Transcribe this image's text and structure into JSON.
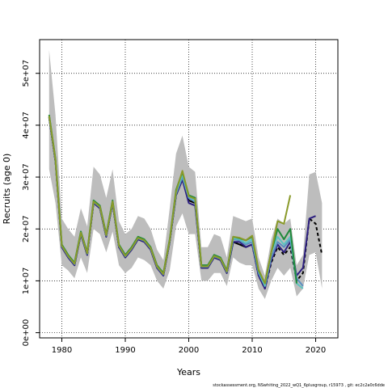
{
  "chart_data": {
    "type": "line",
    "xlabel": "Years",
    "ylabel": "Recruits (age 0)",
    "footer": "stockassessment.org, NSwhiting_2022_wQ1_6plusgroup, r15973 , git: ec2c2a0c6dde",
    "xlim": [
      1976.5,
      2023.5
    ],
    "ylim": [
      -1000000,
      56500000
    ],
    "x_ticks": [
      1980,
      1990,
      2000,
      2010,
      2020
    ],
    "x_tick_labels": [
      "1980",
      "1990",
      "2000",
      "2010",
      "2020"
    ],
    "y_ticks": [
      0,
      10000000,
      20000000,
      30000000,
      40000000,
      50000000
    ],
    "y_tick_labels": [
      "0e+00",
      "1e+07",
      "2e+07",
      "3e+07",
      "4e+07",
      "5e+07"
    ],
    "grid": true,
    "band": {
      "years": [
        1978,
        1979,
        1980,
        1981,
        1982,
        1983,
        1984,
        1985,
        1986,
        1987,
        1988,
        1989,
        1990,
        1991,
        1992,
        1993,
        1994,
        1995,
        1996,
        1997,
        1998,
        1999,
        2000,
        2001,
        2002,
        2003,
        2004,
        2005,
        2006,
        2007,
        2008,
        2009,
        2010,
        2011,
        2012,
        2013,
        2014,
        2015,
        2016,
        2017,
        2018,
        2019,
        2020,
        2021
      ],
      "upper": [
        54500000,
        42000000,
        22000000,
        20000000,
        18500000,
        24000000,
        20500000,
        32000000,
        30500000,
        26000000,
        31500000,
        21500000,
        19000000,
        20000000,
        22500000,
        22000000,
        20000000,
        16000000,
        14000000,
        24000000,
        34500000,
        38000000,
        32000000,
        31000000,
        16500000,
        16500000,
        19000000,
        18500000,
        14500000,
        22500000,
        22000000,
        21500000,
        22000000,
        14500000,
        11000000,
        18000000,
        22000000,
        21000000,
        22000000,
        13000000,
        15000000,
        30500000,
        31000000,
        25000000
      ],
      "lower": [
        31500000,
        25000000,
        13000000,
        12000000,
        10500000,
        14500000,
        11500000,
        20000000,
        19000000,
        15500000,
        19500000,
        13000000,
        11500000,
        12500000,
        14500000,
        14000000,
        13000000,
        10000000,
        8500000,
        12000000,
        20500000,
        23000000,
        19000000,
        19000000,
        10000000,
        10000000,
        11500000,
        11500000,
        9000000,
        14500000,
        13500000,
        13000000,
        13000000,
        8500000,
        6500000,
        10000000,
        12500000,
        11000000,
        12500000,
        7000000,
        8500000,
        15000000,
        15500000,
        8500000
      ]
    },
    "series": [
      {
        "color": "#000000",
        "dash": "solid",
        "x": [
          1978,
          1979,
          1980,
          1981,
          1982,
          1983,
          1984,
          1985,
          1986,
          1987,
          1988,
          1989,
          1990,
          1991,
          1992,
          1993,
          1994,
          1995,
          1996,
          1997,
          1998,
          1999,
          2000,
          2001,
          2002,
          2003,
          2004,
          2005,
          2006,
          2007,
          2008,
          2009,
          2010
        ],
        "y": [
          41500000,
          33000000,
          16500000,
          14500000,
          13000000,
          19000000,
          15000000,
          25000000,
          24000000,
          18500000,
          25000000,
          16500000,
          14500000,
          16000000,
          18000000,
          17500000,
          16000000,
          12500000,
          11000000,
          17500000,
          26500000,
          29500000,
          25500000,
          25000000,
          12500000,
          12500000,
          14500000,
          14000000,
          11500000,
          17500000,
          17000000,
          16500000,
          17000000
        ]
      },
      {
        "color": "#000000",
        "dash": "dashed",
        "x": [
          2010,
          2011,
          2012,
          2013,
          2014,
          2015,
          2016,
          2017,
          2018,
          2019,
          2020,
          2021
        ],
        "y": [
          17000000,
          11000000,
          8500000,
          13500000,
          16500000,
          15000000,
          16500000,
          10000000,
          11500000,
          22000000,
          21000000,
          15000000
        ]
      },
      {
        "color": "#2d1f80",
        "dash": "solid",
        "x": [
          1978,
          1979,
          1980,
          1981,
          1982,
          1983,
          1984,
          1985,
          1986,
          1987,
          1988,
          1989,
          1990,
          1991,
          1992,
          1993,
          1994,
          1995,
          1996,
          1997,
          1998,
          1999,
          2000,
          2001,
          2002,
          2003,
          2004,
          2005,
          2006,
          2007,
          2008,
          2009,
          2010,
          2011,
          2012,
          2013,
          2014,
          2015,
          2016,
          2017,
          2018,
          2019,
          2020
        ],
        "y": [
          41500000,
          33000000,
          16500000,
          14500000,
          13000000,
          19000000,
          15000000,
          25000000,
          24000000,
          18500000,
          25000000,
          16500000,
          14500000,
          16000000,
          18000000,
          17500000,
          16000000,
          12500000,
          11000000,
          17500000,
          26500000,
          29500000,
          25000000,
          24500000,
          12500000,
          12500000,
          14500000,
          14000000,
          11500000,
          17500000,
          17500000,
          16500000,
          17000000,
          11000000,
          8500000,
          14000000,
          17000000,
          15500000,
          17500000,
          11000000,
          12500000,
          22000000,
          22500000
        ]
      },
      {
        "color": "#5a8fc0",
        "dash": "solid",
        "x": [
          1978,
          1979,
          1980,
          1981,
          1982,
          1983,
          1984,
          1985,
          1986,
          1987,
          1988,
          1989,
          1990,
          1991,
          1992,
          1993,
          1994,
          1995,
          1996,
          1997,
          1998,
          1999,
          2000,
          2001,
          2002,
          2003,
          2004,
          2005,
          2006,
          2007,
          2008,
          2009,
          2010,
          2011,
          2012,
          2013,
          2014,
          2015,
          2016,
          2017,
          2018
        ],
        "y": [
          41700000,
          33200000,
          16700000,
          14700000,
          13200000,
          19200000,
          15200000,
          25200000,
          24200000,
          18700000,
          25200000,
          16700000,
          14700000,
          16200000,
          18200000,
          17700000,
          16200000,
          12700000,
          11200000,
          17700000,
          26800000,
          30000000,
          26000000,
          25200000,
          12700000,
          12700000,
          14700000,
          14200000,
          11700000,
          18000000,
          17800000,
          17000000,
          17500000,
          11500000,
          9000000,
          14500000,
          17500000,
          16500000,
          18000000,
          10500000,
          9000000
        ]
      },
      {
        "color": "#5cc4c0",
        "dash": "solid",
        "x": [
          1978,
          1979,
          1980,
          1981,
          1982,
          1983,
          1984,
          1985,
          1986,
          1987,
          1988,
          1989,
          1990,
          1991,
          1992,
          1993,
          1994,
          1995,
          1996,
          1997,
          1998,
          1999,
          2000,
          2001,
          2002,
          2003,
          2004,
          2005,
          2006,
          2007,
          2008,
          2009,
          2010,
          2011,
          2012,
          2013,
          2014,
          2015,
          2016,
          2017,
          2018
        ],
        "y": [
          41800000,
          33300000,
          16800000,
          14800000,
          13300000,
          19300000,
          15300000,
          25300000,
          24300000,
          18800000,
          25300000,
          16800000,
          14800000,
          16300000,
          18300000,
          17800000,
          16300000,
          12800000,
          11300000,
          17800000,
          27000000,
          30500000,
          26200000,
          25500000,
          12800000,
          12800000,
          14800000,
          14300000,
          11800000,
          18200000,
          18000000,
          17300000,
          18000000,
          12000000,
          9000000,
          15500000,
          18500000,
          17000000,
          18500000,
          9500000,
          8500000
        ]
      },
      {
        "color": "#1f8a3a",
        "dash": "solid",
        "x": [
          1978,
          1979,
          1980,
          1981,
          1982,
          1983,
          1984,
          1985,
          1986,
          1987,
          1988,
          1989,
          1990,
          1991,
          1992,
          1993,
          1994,
          1995,
          1996,
          1997,
          1998,
          1999,
          2000,
          2001,
          2002,
          2003,
          2004,
          2005,
          2006,
          2007,
          2008,
          2009,
          2010,
          2011,
          2012,
          2013,
          2014,
          2015,
          2016,
          2017
        ],
        "y": [
          42000000,
          33500000,
          17000000,
          15000000,
          13500000,
          19500000,
          15500000,
          25500000,
          24500000,
          19000000,
          25500000,
          17000000,
          15000000,
          16500000,
          18500000,
          18000000,
          16500000,
          13000000,
          11500000,
          18000000,
          27500000,
          31000000,
          26500000,
          26000000,
          13000000,
          13000000,
          15000000,
          14500000,
          12000000,
          18500000,
          18200000,
          17800000,
          18500000,
          12000000,
          9500000,
          15500000,
          20000000,
          18000000,
          20000000,
          9500000
        ]
      },
      {
        "color": "#8a9a2a",
        "dash": "solid",
        "x": [
          1978,
          1979,
          1980,
          1981,
          1982,
          1983,
          1984,
          1985,
          1986,
          1987,
          1988,
          1989,
          1990,
          1991,
          1992,
          1993,
          1994,
          1995,
          1996,
          1997,
          1998,
          1999,
          2000,
          2001,
          2002,
          2003,
          2004,
          2005,
          2006,
          2007,
          2008,
          2009,
          2010,
          2011,
          2012,
          2013,
          2014,
          2015,
          2016
        ],
        "y": [
          41800000,
          33300000,
          16800000,
          14800000,
          13300000,
          19300000,
          15300000,
          25300000,
          24300000,
          18800000,
          25300000,
          16800000,
          14800000,
          16300000,
          18300000,
          17800000,
          16300000,
          12800000,
          11300000,
          17800000,
          27200000,
          31200000,
          26300000,
          25800000,
          12800000,
          12800000,
          14800000,
          14300000,
          11800000,
          18500000,
          18300000,
          17800000,
          18700000,
          12200000,
          9500000,
          15500000,
          21500000,
          21000000,
          26500000
        ]
      }
    ]
  }
}
